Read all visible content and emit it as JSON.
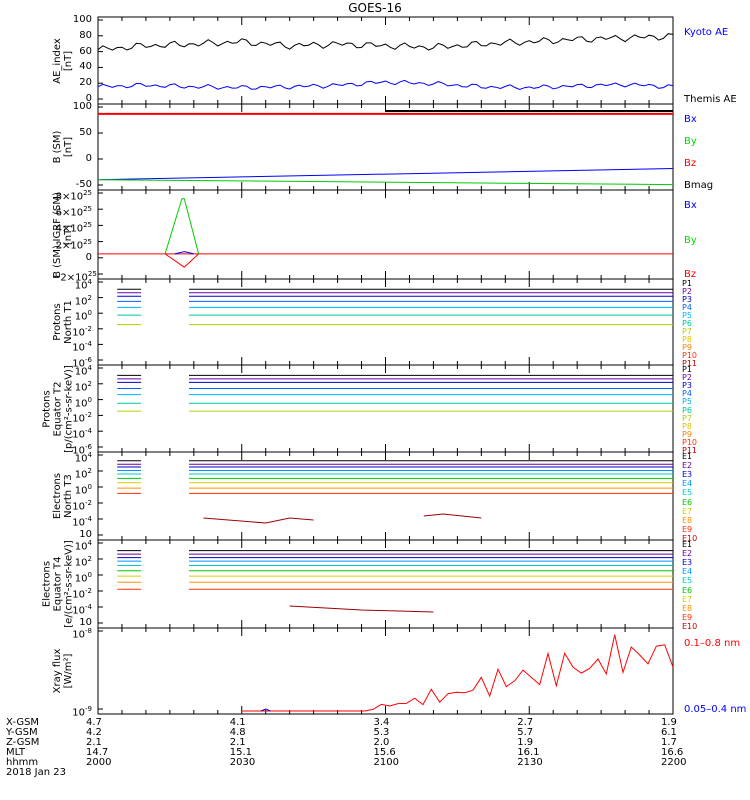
{
  "title": "GOES-16",
  "date": "2018 Jan 23",
  "colors": {
    "black": "#000000",
    "blue": "#0000ff",
    "red": "#ff0000",
    "green": "#00ff00",
    "navy": "#0000a0"
  },
  "panels": [
    {
      "id": "ae",
      "ylabel": [
        "AE_index",
        "[nT]"
      ],
      "ticks": [
        "100",
        "80",
        "60",
        "40",
        "20",
        "0"
      ],
      "legend": [
        {
          "text": "Kyoto AE",
          "color": "#0000ff"
        },
        {
          "text": "Themis AE",
          "color": "#000000"
        }
      ]
    },
    {
      "id": "bsm",
      "ylabel": [
        "B (SM)",
        "[nT]"
      ],
      "ticks": [
        "100",
        "50",
        "0",
        "-50"
      ],
      "legend": [
        {
          "text": "Bx",
          "color": "#0000ff"
        },
        {
          "text": "By",
          "color": "#00dd00"
        },
        {
          "text": "Bz",
          "color": "#ff0000"
        },
        {
          "text": "Bmag",
          "color": "#000000"
        }
      ]
    },
    {
      "id": "bigrf",
      "ylabel": [
        "B (SM)-IGRF (SM)",
        "[nT]"
      ],
      "ticks": [
        "8×10",
        "6×10",
        "4×10",
        "2×10",
        "0",
        "−2×10"
      ],
      "tickexp": "25",
      "legend": [
        {
          "text": "Bx",
          "color": "#0000ff"
        },
        {
          "text": "By",
          "color": "#00dd00"
        },
        {
          "text": "Bz",
          "color": "#ff0000"
        }
      ]
    },
    {
      "id": "pn",
      "ylabel": [
        "Protons",
        "North T1"
      ],
      "ticks": [
        "10",
        "10",
        "10",
        "10",
        "10",
        "10"
      ],
      "tickexps": [
        "4",
        "2",
        "0",
        "-2",
        "-4",
        "-6"
      ],
      "legend": [
        "P1",
        "P2",
        "P3",
        "P4",
        "P5",
        "P6",
        "P7",
        "P8",
        "P9",
        "P10",
        "P11"
      ]
    },
    {
      "id": "pe",
      "ylabel": [
        "Protons",
        "Equator T2",
        "[p/(cm²-s-sr-keV)]"
      ],
      "ticks": [
        "10",
        "10",
        "10",
        "10",
        "10",
        "10"
      ],
      "tickexps": [
        "4",
        "2",
        "0",
        "-2",
        "-4",
        "-6"
      ],
      "legend": [
        "P1",
        "P2",
        "P3",
        "P4",
        "P5",
        "P6",
        "P7",
        "P8",
        "P9",
        "P10",
        "P11"
      ]
    },
    {
      "id": "en",
      "ylabel": [
        "Electrons",
        "North T3"
      ],
      "ticks": [
        "10",
        "10",
        "10",
        "10",
        "10",
        "10"
      ],
      "tickexps": [
        "4",
        "2",
        "0",
        "-2",
        "-4"
      ],
      "legend": [
        "E1",
        "E2",
        "E3",
        "E4",
        "E5",
        "E6",
        "E7",
        "E8",
        "E9",
        "E10"
      ]
    },
    {
      "id": "ee",
      "ylabel": [
        "Electrons",
        "Equator T4",
        "[e/(cm²-s-sr-keV)]"
      ],
      "ticks": [
        "10",
        "10",
        "10",
        "10",
        "10",
        "10"
      ],
      "tickexps": [
        "4",
        "2",
        "0",
        "-2",
        "-4"
      ],
      "legend": [
        "E1",
        "E2",
        "E3",
        "E4",
        "E5",
        "E6",
        "E7",
        "E8",
        "E9",
        "E10"
      ]
    },
    {
      "id": "xray",
      "ylabel": [
        "Xray flux",
        "[W/m²]"
      ],
      "ticks": [
        "10",
        "10"
      ],
      "tickexps": [
        "-8",
        "-9"
      ],
      "legend": [
        {
          "text": "0.1–0.8 nm",
          "color": "#ff0000"
        },
        {
          "text": "0.05–0.4 nm",
          "color": "#0000ff"
        }
      ]
    }
  ],
  "legend_colors_p": [
    "#000000",
    "#6a00a0",
    "#0000c8",
    "#0060ff",
    "#00b0ff",
    "#00c8a0",
    "#b0d000",
    "#e0c000",
    "#ff8000",
    "#ff3000",
    "#c00000"
  ],
  "legend_colors_e": [
    "#000000",
    "#6a00a0",
    "#0000c8",
    "#0090ff",
    "#00c8c8",
    "#00c800",
    "#d0d000",
    "#ff9000",
    "#ff3000",
    "#c00000"
  ],
  "footer": {
    "labels": [
      "X-GSM",
      "Y-GSM",
      "Z-GSM",
      "MLT",
      "hhmm"
    ],
    "columns": [
      [
        "4.7",
        "4.2",
        "2.1",
        "14.7",
        "2000"
      ],
      [
        "4.1",
        "4.8",
        "2.1",
        "15.1",
        "2030"
      ],
      [
        "3.4",
        "5.3",
        "2.0",
        "15.6",
        "2100"
      ],
      [
        "2.7",
        "5.7",
        "1.9",
        "16.1",
        "2130"
      ],
      [
        "1.9",
        "6.1",
        "1.7",
        "16.6",
        "2200"
      ]
    ]
  },
  "chart_data": {
    "type": "line",
    "title": "GOES-16",
    "x_range_hhmm": [
      "2000",
      "2200"
    ],
    "panels": [
      {
        "name": "AE_index",
        "ylabel": "AE_index [nT]",
        "ylim": [
          0,
          100
        ],
        "series": [
          {
            "name": "Kyoto AE",
            "x_min": [
              0,
              10,
              20,
              30,
              40,
              50,
              60,
              70,
              80,
              90,
              100,
              110,
              120
            ],
            "y": [
              65,
              70,
              72,
              75,
              70,
              72,
              70,
              68,
              72,
              75,
              78,
              80,
              82
            ]
          },
          {
            "name": "Themis AE",
            "x_min": [
              0,
              10,
              20,
              30,
              40,
              50,
              60,
              70,
              80,
              90,
              100,
              110,
              120
            ],
            "y": [
              18,
              20,
              18,
              17,
              18,
              20,
              24,
              22,
              18,
              17,
              19,
              21,
              18
            ]
          }
        ]
      },
      {
        "name": "B (SM)",
        "ylabel": "B (SM) [nT]",
        "ylim": [
          -60,
          100
        ],
        "series": [
          {
            "name": "Bx",
            "x_min": [
              0,
              120
            ],
            "y": [
              -45,
              -22
            ]
          },
          {
            "name": "By",
            "x_min": [
              0,
              120
            ],
            "y": [
              -45,
              -55
            ]
          },
          {
            "name": "Bz",
            "x_min": [
              0,
              120
            ],
            "y": [
              90,
              90
            ]
          },
          {
            "name": "Bmag",
            "x_min": [
              0,
              60,
              120
            ],
            "y": [
              90,
              95,
              96
            ]
          }
        ]
      },
      {
        "name": "B (SM)-IGRF (SM)",
        "ylabel": "B (SM)-IGRF (SM) [nT]",
        "ylim": [
          -3e+25,
          8e+25
        ],
        "series": [
          {
            "name": "By",
            "x_min": [
              14,
              19,
              24
            ],
            "y": [
              0,
              7.5e+25,
              0
            ]
          },
          {
            "name": "Bz",
            "x_min": [
              14,
              19,
              24
            ],
            "y": [
              0,
              -2e+25,
              0
            ]
          }
        ]
      },
      {
        "name": "Xray flux",
        "ylabel": "Xray flux [W/m2]",
        "ylim": [
          1e-09,
          1e-08
        ],
        "yscale": "log"
      }
    ]
  }
}
